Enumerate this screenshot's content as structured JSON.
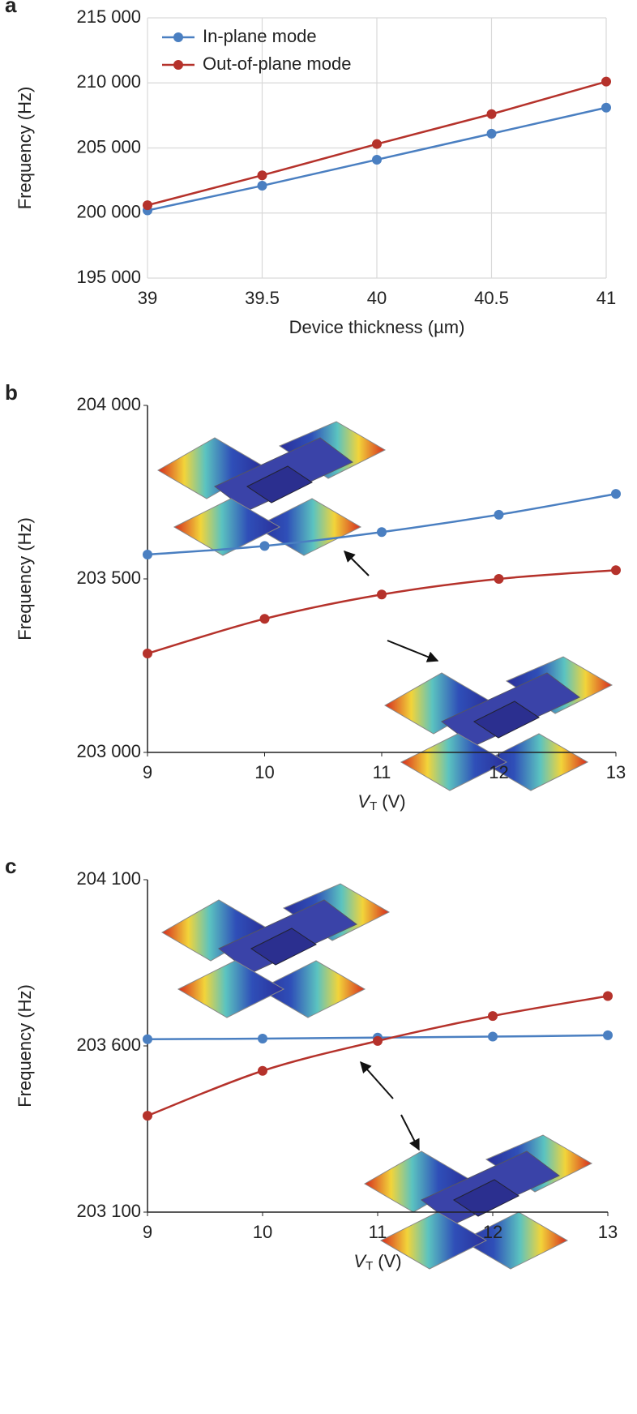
{
  "chart_data": [
    {
      "type": "line",
      "label": "a",
      "ylabel": "Frequency (Hz)",
      "xlabel": "Device thickness (µm)",
      "x": [
        39,
        39.5,
        40,
        40.5,
        41
      ],
      "xlim": [
        39,
        41
      ],
      "xticks": [
        39,
        39.5,
        40,
        40.5,
        41
      ],
      "ylim": [
        195000,
        215000
      ],
      "yticks": [
        {
          "value": 195000,
          "label": "195 000"
        },
        {
          "value": 200000,
          "label": "200 000"
        },
        {
          "value": 205000,
          "label": "205 000"
        },
        {
          "value": 210000,
          "label": "210 000"
        },
        {
          "value": 215000,
          "label": "215 000"
        }
      ],
      "grid": true,
      "smooth": false,
      "legend": "upper left",
      "series": [
        {
          "name": "In-plane mode",
          "color": "#4a7fc1",
          "values": [
            200200,
            202100,
            204100,
            206100,
            208100
          ]
        },
        {
          "name": "Out-of-plane mode",
          "color": "#b5322b",
          "values": [
            200600,
            202900,
            205300,
            207600,
            210100
          ]
        }
      ]
    },
    {
      "type": "line",
      "label": "b",
      "ylabel": "Frequency (Hz)",
      "xlabel": {
        "symbol": "V",
        "subscript": "T",
        "unit": "(V)"
      },
      "x": [
        9,
        10,
        11,
        12,
        13
      ],
      "xlim": [
        9,
        13
      ],
      "xticks": [
        9,
        10,
        11,
        12,
        13
      ],
      "ylim": [
        203000,
        204000
      ],
      "yticks": [
        {
          "value": 203000,
          "label": "203 000"
        },
        {
          "value": 203500,
          "label": "203 500"
        },
        {
          "value": 204000,
          "label": "204 000"
        }
      ],
      "grid": false,
      "smooth": true,
      "series": [
        {
          "color": "#4a7fc1",
          "values": [
            203570,
            203595,
            203635,
            203685,
            203745
          ]
        },
        {
          "color": "#b5322b",
          "values": [
            203285,
            203385,
            203455,
            203500,
            203525
          ]
        }
      ]
    },
    {
      "type": "line",
      "label": "c",
      "ylabel": "Frequency (Hz)",
      "xlabel": {
        "symbol": "V",
        "subscript": "T",
        "unit": "(V)"
      },
      "x": [
        9,
        10,
        11,
        12,
        13
      ],
      "xlim": [
        9,
        13
      ],
      "xticks": [
        9,
        10,
        11,
        12,
        13
      ],
      "ylim": [
        203100,
        204100
      ],
      "yticks": [
        {
          "value": 203100,
          "label": "203 100"
        },
        {
          "value": 203600,
          "label": "203 600"
        },
        {
          "value": 204100,
          "label": "204 100"
        }
      ],
      "grid": false,
      "smooth": true,
      "series": [
        {
          "color": "#4a7fc1",
          "values": [
            203620,
            203622,
            203625,
            203628,
            203632
          ]
        },
        {
          "color": "#b5322b",
          "values": [
            203390,
            203525,
            203615,
            203690,
            203750
          ]
        }
      ]
    }
  ]
}
